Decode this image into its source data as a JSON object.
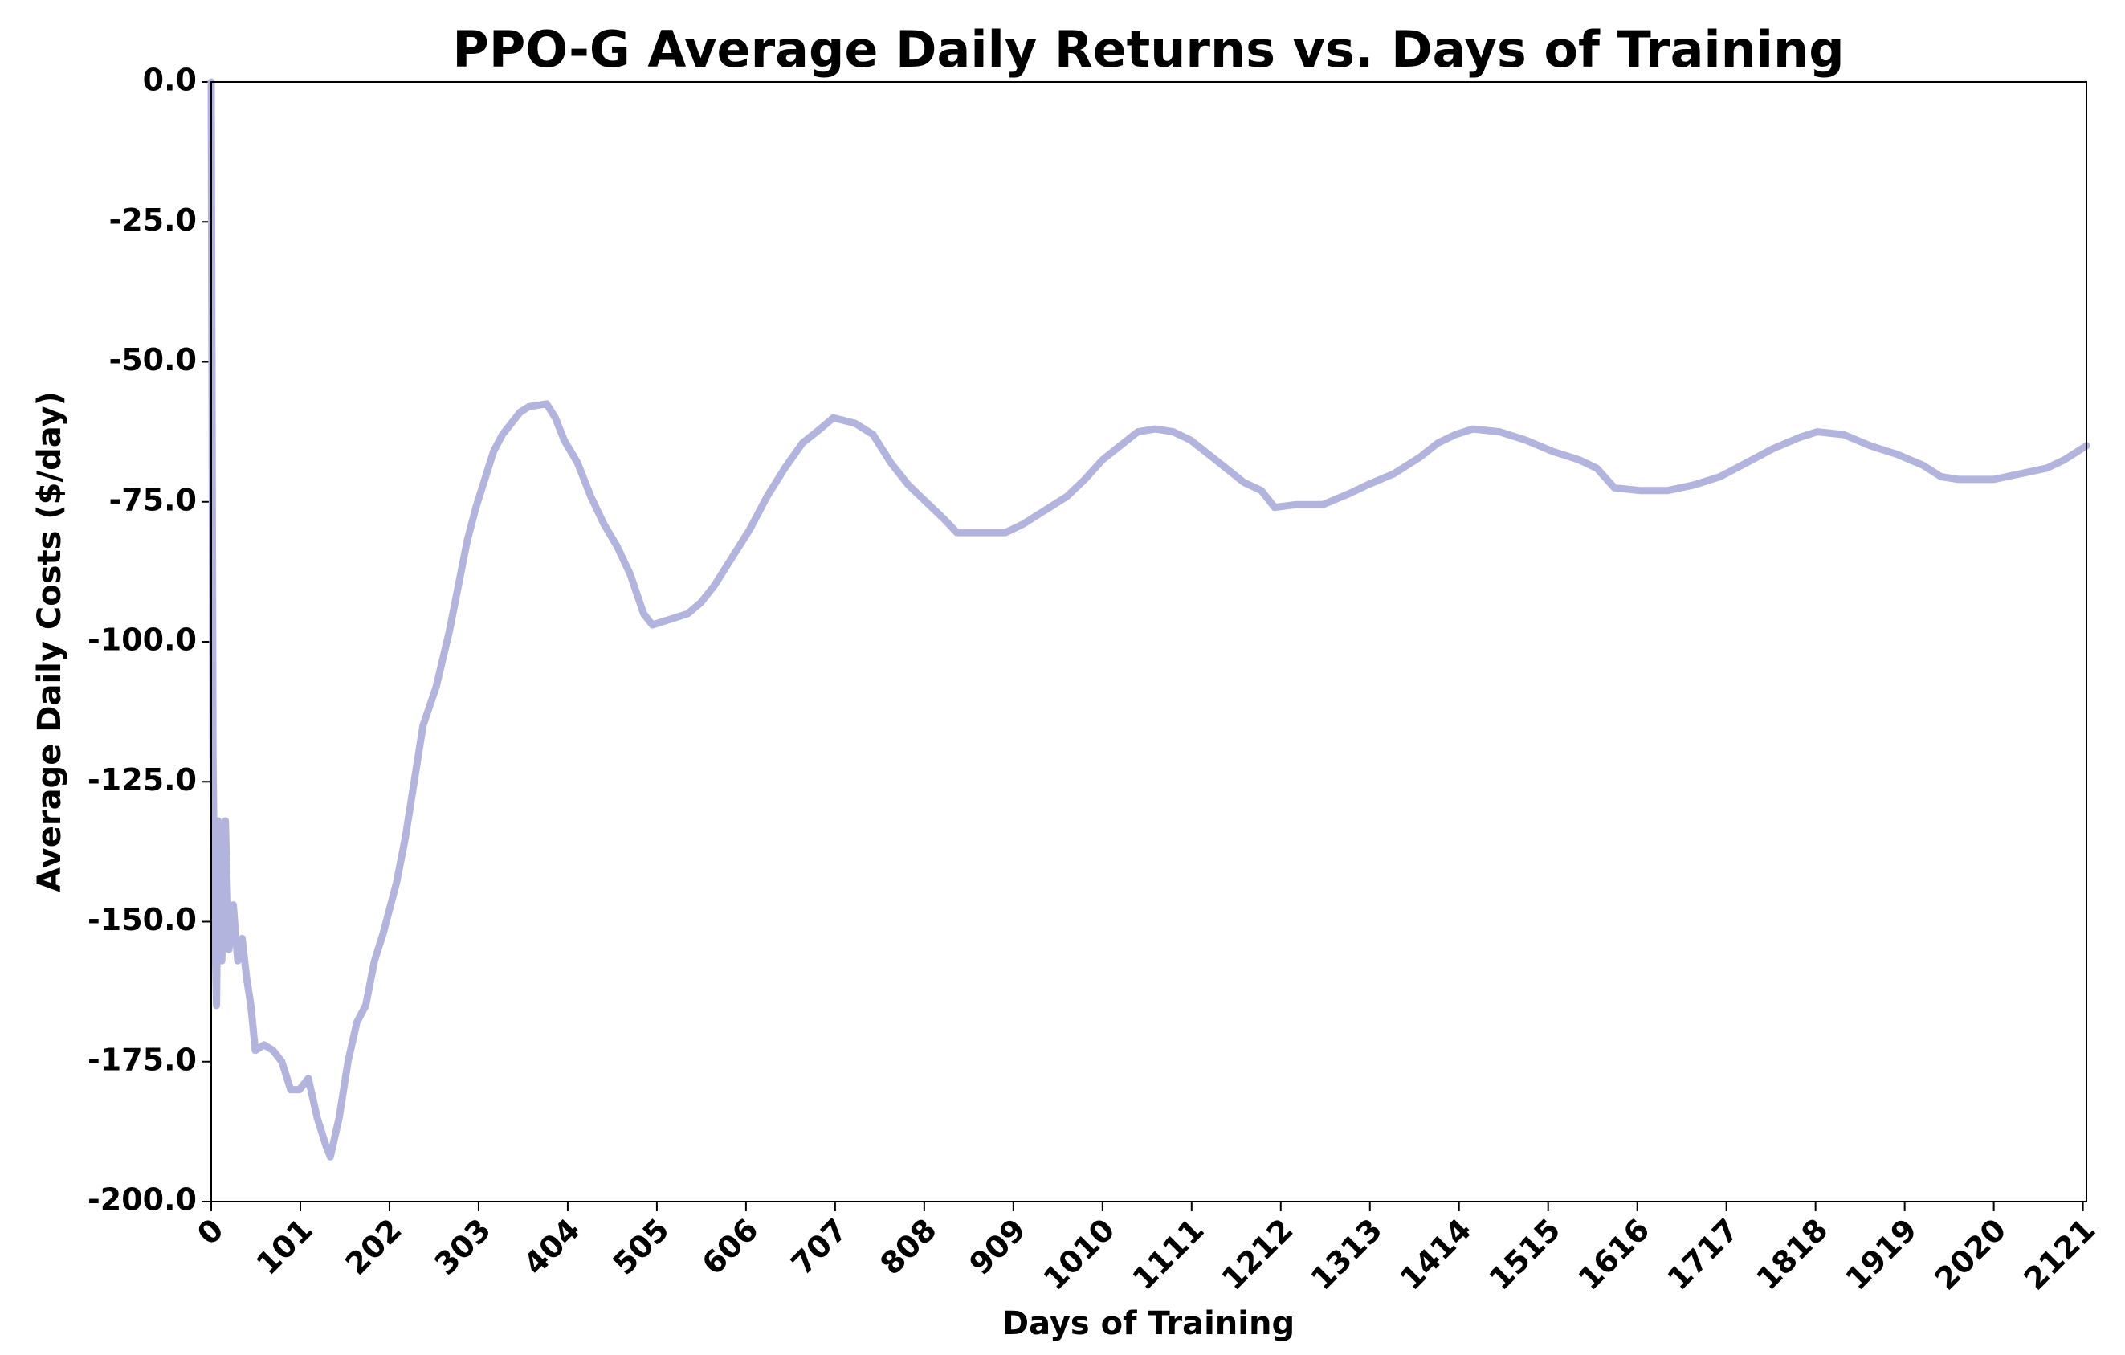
{
  "chart_data": {
    "type": "line",
    "title": "PPO-G Average Daily Returns vs. Days of Training",
    "x_label": "Days of Training",
    "y_label": "Average Daily Costs ($/day)",
    "x": [
      0,
      2,
      4,
      6,
      8,
      12,
      16,
      20,
      25,
      30,
      35,
      40,
      45,
      50,
      60,
      70,
      80,
      90,
      100,
      110,
      120,
      130,
      135,
      145,
      155,
      165,
      175,
      185,
      195,
      210,
      220,
      230,
      240,
      255,
      270,
      280,
      290,
      300,
      310,
      320,
      330,
      340,
      350,
      360,
      380,
      390,
      400,
      415,
      430,
      445,
      460,
      475,
      490,
      500,
      520,
      540,
      555,
      570,
      590,
      610,
      630,
      650,
      670,
      690,
      705,
      730,
      750,
      770,
      790,
      810,
      830,
      845,
      870,
      900,
      920,
      945,
      970,
      990,
      1010,
      1030,
      1050,
      1070,
      1090,
      1110,
      1130,
      1150,
      1170,
      1190,
      1205,
      1230,
      1260,
      1290,
      1310,
      1340,
      1370,
      1390,
      1410,
      1430,
      1460,
      1490,
      1520,
      1550,
      1570,
      1590,
      1620,
      1650,
      1680,
      1710,
      1740,
      1770,
      1800,
      1820,
      1850,
      1880,
      1910,
      1940,
      1960,
      1980,
      2020,
      2050,
      2080,
      2100,
      2125
    ],
    "series": [
      {
        "color": "#b3b4de",
        "values": [
          0,
          -120,
          -150,
          -165,
          -132,
          -157,
          -132,
          -155,
          -147,
          -157,
          -153,
          -160,
          -165,
          -173,
          -172,
          -173,
          -175,
          -180,
          -180,
          -178,
          -185,
          -190,
          -192,
          -185,
          -175,
          -168,
          -165,
          -157,
          -152,
          -143,
          -135,
          -125,
          -115,
          -108,
          -98,
          -90,
          -82,
          -76,
          -71,
          -66,
          -63,
          -61,
          -59,
          -58,
          -57.5,
          -60,
          -64,
          -68,
          -74,
          -79,
          -83,
          -88,
          -95,
          -97,
          -96,
          -95,
          -93,
          -90,
          -85,
          -80,
          -74,
          -69,
          -64.5,
          -62,
          -60,
          -61,
          -63,
          -68,
          -72,
          -75,
          -78,
          -80.5,
          -80.5,
          -80.5,
          -79,
          -76.5,
          -74,
          -71,
          -67.5,
          -65,
          -62.5,
          -62,
          -62.5,
          -64,
          -66.5,
          -69,
          -71.5,
          -73,
          -76,
          -75.5,
          -75.5,
          -73.5,
          -72,
          -70,
          -67,
          -64.5,
          -63,
          -62,
          -62.5,
          -64,
          -66,
          -67.5,
          -69,
          -72.5,
          -73,
          -73,
          -72,
          -70.5,
          -68,
          -65.5,
          -63.5,
          -62.5,
          -63,
          -65,
          -66.5,
          -68.5,
          -70.5,
          -71,
          -71,
          -70,
          -69,
          -67.5,
          -65
        ]
      }
    ],
    "xlim": [
      0,
      2125
    ],
    "ylim": [
      -200,
      0
    ],
    "xticks": [
      0,
      101,
      202,
      303,
      404,
      505,
      606,
      707,
      808,
      909,
      1010,
      1111,
      1212,
      1313,
      1414,
      1515,
      1616,
      1717,
      1818,
      1919,
      2020,
      2121
    ],
    "yticks": [
      {
        "value": 0,
        "label": "0.0"
      },
      {
        "value": -25,
        "label": "-25.0"
      },
      {
        "value": -50,
        "label": "-50.0"
      },
      {
        "value": -75,
        "label": "-75.0"
      },
      {
        "value": -100,
        "label": "-100.0"
      },
      {
        "value": -125,
        "label": "-125.0"
      },
      {
        "value": -150,
        "label": "-150.0"
      },
      {
        "value": -175,
        "label": "-175.0"
      },
      {
        "value": -200,
        "label": "-200.0"
      }
    ],
    "grid": false
  }
}
